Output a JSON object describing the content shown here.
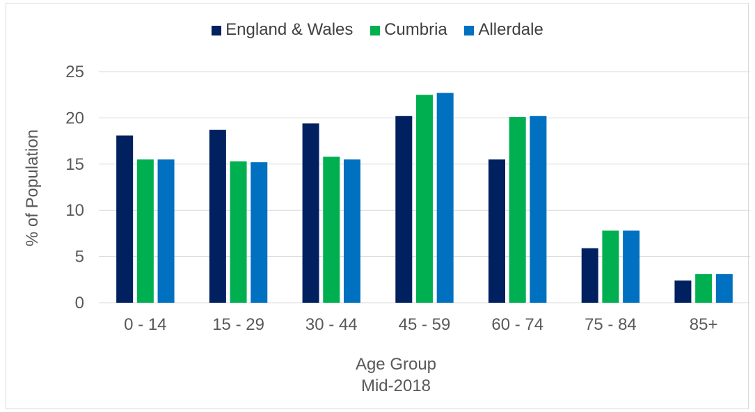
{
  "chart_data": {
    "type": "bar",
    "categories": [
      "0 - 14",
      "15 - 29",
      "30 - 44",
      "45 - 59",
      "60 - 74",
      "75 - 84",
      "85+"
    ],
    "series": [
      {
        "name": "England & Wales",
        "color": "#002060",
        "values": [
          18.1,
          18.7,
          19.4,
          20.2,
          15.5,
          5.9,
          2.4
        ]
      },
      {
        "name": "Cumbria",
        "color": "#00b050",
        "values": [
          15.5,
          15.3,
          15.8,
          22.5,
          20.1,
          7.8,
          3.1
        ]
      },
      {
        "name": "Allerdale",
        "color": "#0070c0",
        "values": [
          15.5,
          15.2,
          15.5,
          22.7,
          20.2,
          7.8,
          3.1
        ]
      }
    ],
    "xlabel": "Age Group",
    "xlabel_sub": "Mid-2018",
    "ylabel": "% of Population",
    "ylim": [
      0,
      25
    ],
    "yticks": [
      0,
      5,
      10,
      15,
      20,
      25
    ],
    "grid": true,
    "legend_position": "top"
  }
}
